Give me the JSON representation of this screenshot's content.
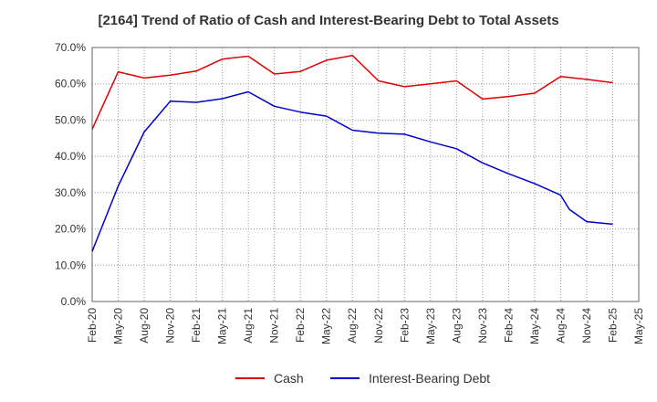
{
  "chart_data": {
    "type": "line",
    "title": "[2164]  Trend of Ratio of Cash and Interest-Bearing Debt to Total Assets",
    "xlabel": "",
    "ylabel": "",
    "ylim": [
      0,
      70
    ],
    "y_ticks": [
      "0.0%",
      "10.0%",
      "20.0%",
      "30.0%",
      "40.0%",
      "50.0%",
      "60.0%",
      "70.0%"
    ],
    "y_tick_values": [
      0,
      10,
      20,
      30,
      40,
      50,
      60,
      70
    ],
    "x_ticks": [
      "Feb-20",
      "May-20",
      "Aug-20",
      "Nov-20",
      "Feb-21",
      "May-21",
      "Aug-21",
      "Nov-21",
      "Feb-22",
      "May-22",
      "Aug-22",
      "Nov-22",
      "Feb-23",
      "May-23",
      "Aug-23",
      "Nov-23",
      "Feb-24",
      "May-24",
      "Aug-24",
      "Nov-24",
      "Feb-25",
      "May-25"
    ],
    "grid": true,
    "legend_position": "bottom",
    "series": [
      {
        "name": "Cash",
        "color": "#e00000",
        "x": [
          "Feb-20",
          "May-20",
          "Aug-20",
          "Nov-20",
          "Feb-21",
          "May-21",
          "Aug-21",
          "Nov-21",
          "Feb-22",
          "May-22",
          "Aug-22",
          "Nov-22",
          "Feb-23",
          "May-23",
          "Aug-23",
          "Nov-23",
          "Feb-24",
          "May-24",
          "Aug-24",
          "Nov-24",
          "Feb-25"
        ],
        "values": [
          47.5,
          63.3,
          61.6,
          62.4,
          63.5,
          66.8,
          67.6,
          62.7,
          63.4,
          66.5,
          67.8,
          60.8,
          59.2,
          60.0,
          60.8,
          55.8,
          56.5,
          57.4,
          62.0,
          61.2,
          60.3
        ]
      },
      {
        "name": "Interest-Bearing Debt",
        "color": "#0000cc",
        "x": [
          "Feb-20",
          "May-20",
          "Aug-20",
          "Nov-20",
          "Feb-21",
          "May-21",
          "Aug-21",
          "Nov-21",
          "Feb-22",
          "May-22",
          "Aug-22",
          "Nov-22",
          "Feb-23",
          "May-23",
          "Aug-23",
          "Nov-23",
          "Feb-24",
          "May-24",
          "Aug-24",
          "Sep-24",
          "Nov-24",
          "Feb-25"
        ],
        "values": [
          13.8,
          31.8,
          46.7,
          55.2,
          54.9,
          55.9,
          57.8,
          53.8,
          52.2,
          51.1,
          47.2,
          46.4,
          46.1,
          44.0,
          42.1,
          38.2,
          35.2,
          32.5,
          29.3,
          25.4,
          22.0,
          21.3
        ]
      }
    ]
  }
}
